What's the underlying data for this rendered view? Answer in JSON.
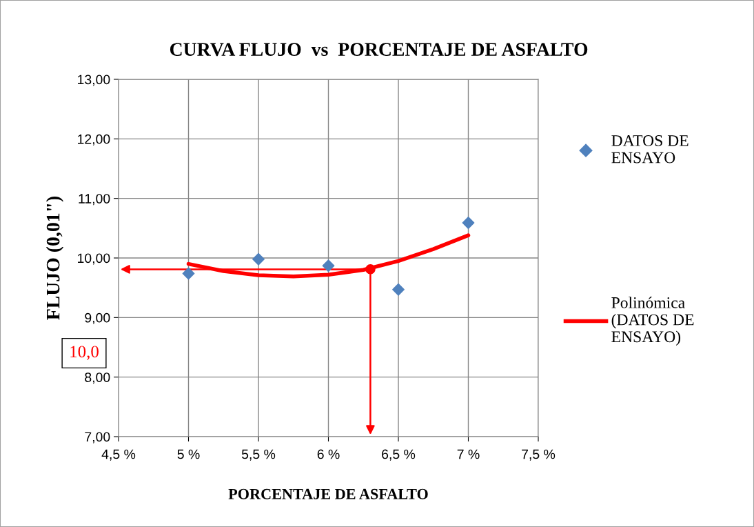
{
  "chart_data": {
    "type": "scatter",
    "title": "CURVA FLUJO  vs  PORCENTAJE DE ASFALTO",
    "xlabel": "PORCENTAJE DE ASFALTO",
    "ylabel": "FLUJO (0,01\")",
    "series": [
      {
        "name": "DATOS DE ENSAYO",
        "marker": "diamond",
        "color": "#4f81bd",
        "x": [
          5,
          5.5,
          6,
          6.5,
          7
        ],
        "values": [
          9.74,
          9.98,
          9.87,
          9.47,
          10.59
        ]
      },
      {
        "name": "Polinómica (DATOS DE ENSAYO)",
        "type": "line",
        "color": "#ff0000",
        "x": [
          5,
          5.25,
          5.5,
          5.75,
          6,
          6.25,
          6.5,
          6.75,
          7
        ],
        "values": [
          9.9,
          9.78,
          9.71,
          9.69,
          9.72,
          9.8,
          9.95,
          10.15,
          10.38
        ]
      },
      {
        "marker": "circle",
        "color": "#ff0000",
        "x": [
          6.3
        ],
        "values": [
          9.81
        ]
      }
    ],
    "annotations": [
      "10,0"
    ],
    "xlim": [
      4.5,
      7.5
    ],
    "xticks": [
      {
        "value": 4.5,
        "label": "4,5 %"
      },
      {
        "value": 5,
        "label": "5 %"
      },
      {
        "value": 5.5,
        "label": "5,5 %"
      },
      {
        "value": 6,
        "label": "6 %"
      },
      {
        "value": 6.5,
        "label": "6,5 %"
      },
      {
        "value": 7,
        "label": "7 %"
      },
      {
        "value": 7.5,
        "label": "7,5 %"
      }
    ],
    "ylim": [
      7,
      13
    ],
    "yticks": [
      {
        "value": 7,
        "label": "7,00"
      },
      {
        "value": 8,
        "label": "8,00"
      },
      {
        "value": 9,
        "label": "9,00"
      },
      {
        "value": 10,
        "label": "10,00"
      },
      {
        "value": 11,
        "label": "11,00"
      },
      {
        "value": 12,
        "label": "12,00"
      },
      {
        "value": 13,
        "label": "13,00"
      }
    ],
    "grid": true,
    "legend": "right"
  }
}
